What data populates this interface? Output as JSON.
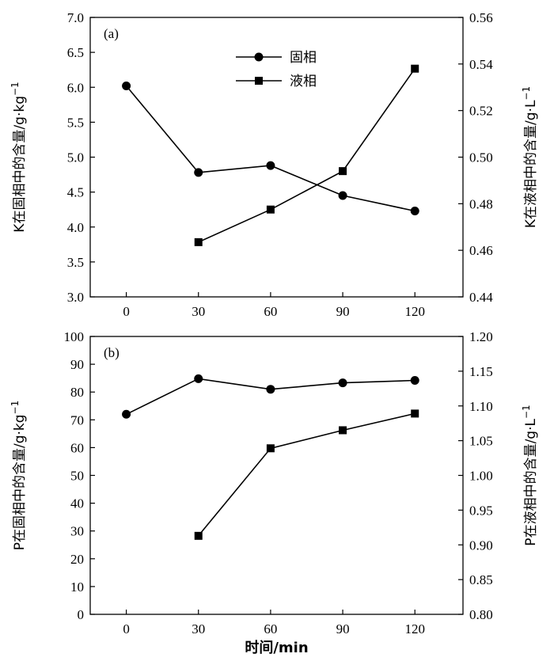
{
  "chart_data": [
    {
      "type": "line",
      "panel_tag": "(a)",
      "x": [
        0,
        30,
        60,
        90,
        120
      ],
      "xticks": [
        "0",
        "30",
        "60",
        "90",
        "120"
      ],
      "xlim": [
        -15,
        140
      ],
      "ylabel": "K在固相中的含量/g·kg",
      "ylabel_sup": "−1",
      "ylim": [
        3.0,
        7.0
      ],
      "yticks": [
        "3.0",
        "3.5",
        "4.0",
        "4.5",
        "5.0",
        "5.5",
        "6.0",
        "6.5",
        "7.0"
      ],
      "y2label": "K在液相中的含量/g·L",
      "y2label_sup": "−1",
      "y2lim": [
        0.44,
        0.56
      ],
      "y2ticks": [
        "0.44",
        "0.46",
        "0.48",
        "0.50",
        "0.52",
        "0.54",
        "0.56"
      ],
      "legend_position": "top-center",
      "series": [
        {
          "name": "固相",
          "marker": "circle",
          "axis": "left",
          "x": [
            0,
            30,
            60,
            90,
            120
          ],
          "values": [
            6.02,
            4.78,
            4.88,
            4.45,
            4.23
          ]
        },
        {
          "name": "液相",
          "marker": "square",
          "axis": "right",
          "x": [
            30,
            60,
            90,
            120
          ],
          "values": [
            0.4635,
            0.4775,
            0.494,
            0.538
          ]
        }
      ]
    },
    {
      "type": "line",
      "panel_tag": "(b)",
      "x": [
        0,
        30,
        60,
        90,
        120
      ],
      "xticks": [
        "0",
        "30",
        "60",
        "90",
        "120"
      ],
      "xlim": [
        -15,
        140
      ],
      "xlabel": "时间/min",
      "ylabel": "P在固相中的含量/g·kg",
      "ylabel_sup": "−1",
      "ylim": [
        0,
        100
      ],
      "yticks": [
        "0",
        "10",
        "20",
        "30",
        "40",
        "50",
        "60",
        "70",
        "80",
        "90",
        "100"
      ],
      "y2label": "P在液相中的含量/g·L",
      "y2label_sup": "−1",
      "y2lim": [
        0.8,
        1.2
      ],
      "y2ticks": [
        "0.80",
        "0.85",
        "0.90",
        "0.95",
        "1.00",
        "1.05",
        "1.10",
        "1.15",
        "1.20"
      ],
      "series": [
        {
          "name": "",
          "marker": "circle",
          "axis": "left",
          "x": [
            0,
            30,
            60,
            90,
            120
          ],
          "values": [
            72.0,
            84.8,
            81.0,
            83.3,
            84.2
          ]
        },
        {
          "name": "",
          "marker": "square",
          "axis": "right",
          "x": [
            30,
            60,
            90,
            120
          ],
          "values": [
            0.913,
            1.039,
            1.065,
            1.089
          ]
        }
      ]
    }
  ]
}
